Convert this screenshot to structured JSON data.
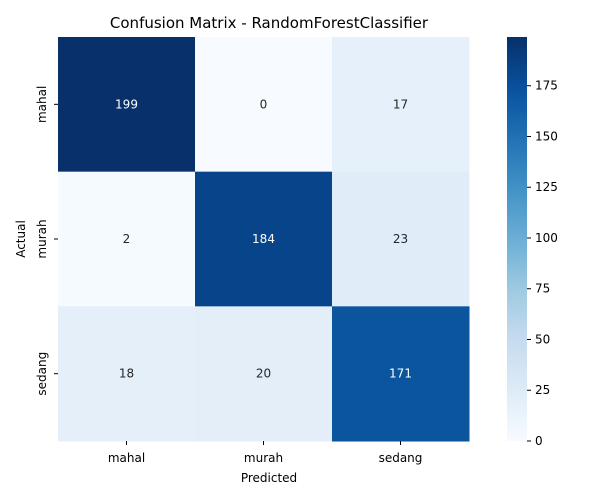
{
  "chart_data": {
    "type": "heatmap",
    "title": "Confusion Matrix - RandomForestClassifier",
    "xlabel": "Predicted",
    "ylabel": "Actual",
    "x_categories": [
      "mahal",
      "murah",
      "sedang"
    ],
    "y_categories": [
      "mahal",
      "murah",
      "sedang"
    ],
    "matrix": [
      [
        199,
        0,
        17
      ],
      [
        2,
        184,
        23
      ],
      [
        18,
        20,
        171
      ]
    ],
    "colormap": "Blues",
    "colorbar": {
      "range": [
        0,
        199
      ],
      "ticks": [
        0,
        25,
        50,
        75,
        100,
        125,
        150,
        175
      ]
    },
    "annotations_shown": true
  }
}
